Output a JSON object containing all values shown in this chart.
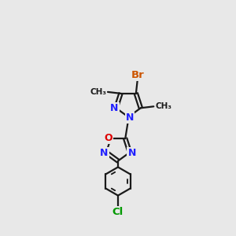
{
  "bg_color": "#e8e8e8",
  "bond_color": "#1a1a1a",
  "bond_width": 1.6,
  "atom_colors": {
    "N": "#2020ff",
    "O": "#dd0000",
    "Br": "#cc5500",
    "Cl": "#009900",
    "C": "#1a1a1a"
  },
  "xlim": [
    -1.6,
    1.6
  ],
  "ylim": [
    -4.0,
    3.5
  ]
}
